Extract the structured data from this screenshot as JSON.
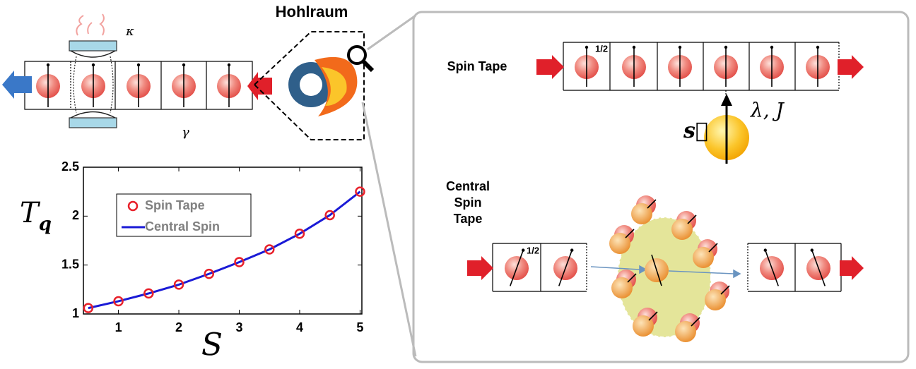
{
  "labels": {
    "hohlraum": "Hohlraum",
    "kappa": "κ",
    "gamma": "γ",
    "spin_tape": "Spin Tape",
    "half_top": "1/2",
    "coupling": "λ, J",
    "spin_vector": "s⃗",
    "central_spin_tape": [
      "Central",
      "Spin",
      "Tape"
    ],
    "half_bottom": "1/2"
  },
  "chart_data": {
    "type": "line",
    "xlabel": "S",
    "ylabel_base": "T",
    "ylabel_sub": "q",
    "x": [
      0.5,
      1,
      1.5,
      2,
      2.5,
      3,
      3.5,
      4,
      4.5,
      5
    ],
    "series": [
      {
        "name": "Spin Tape",
        "color": "#e8202a",
        "style": "markers",
        "values": [
          1.06,
          1.13,
          1.21,
          1.3,
          1.41,
          1.53,
          1.66,
          1.82,
          2.01,
          2.25
        ]
      },
      {
        "name": "Central Spin",
        "color": "#1a1ad6",
        "style": "line",
        "values": [
          1.06,
          1.13,
          1.21,
          1.3,
          1.41,
          1.53,
          1.66,
          1.82,
          2.01,
          2.25
        ]
      }
    ],
    "xlim": [
      0.42,
      5.03
    ],
    "ylim": [
      1,
      2.5
    ],
    "xticks": [
      1,
      2,
      3,
      4,
      5
    ],
    "yticks": [
      1,
      1.5,
      2,
      2.5
    ]
  }
}
